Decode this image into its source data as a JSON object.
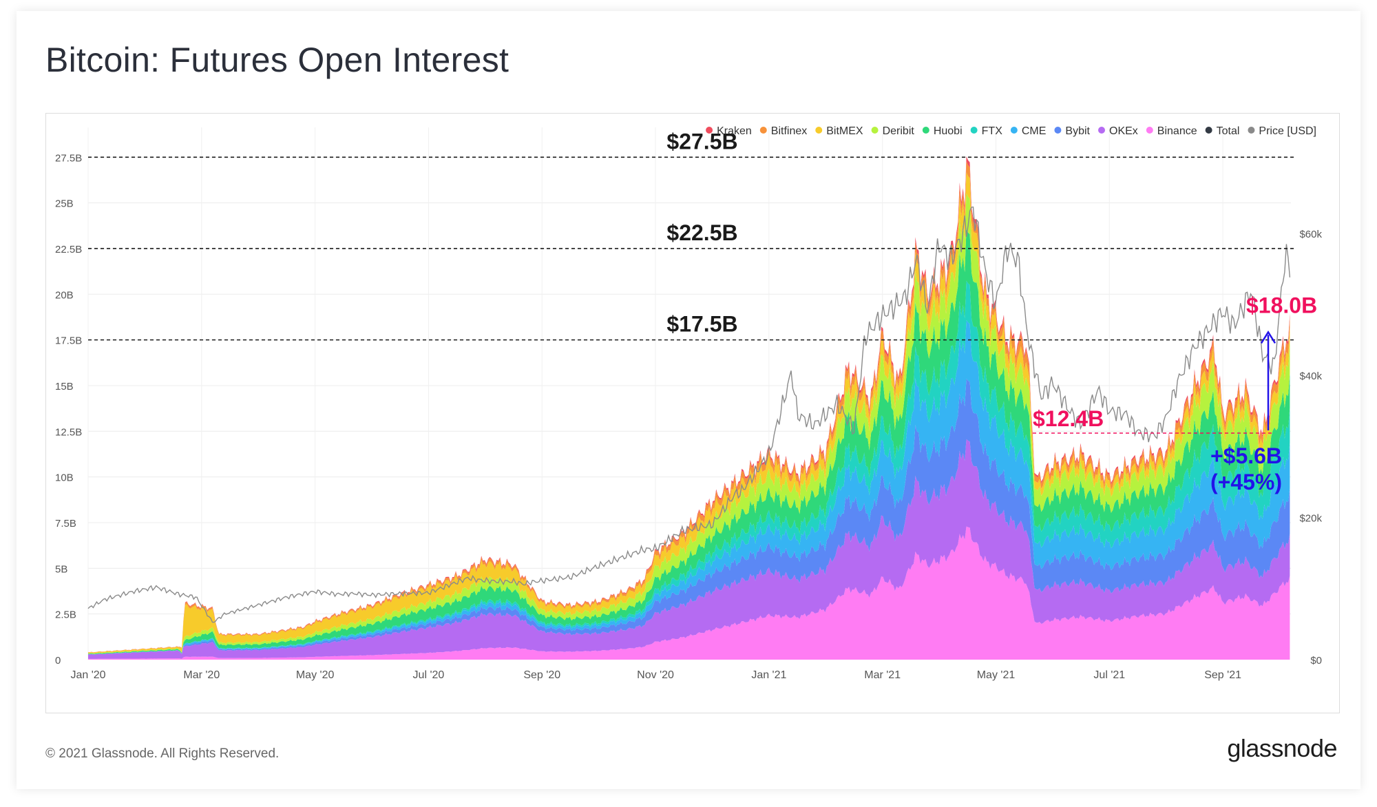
{
  "title": "Bitcoin: Futures Open Interest",
  "footer": {
    "copyright": "© 2021 Glassnode. All Rights Reserved.",
    "brand": "glassnode"
  },
  "colors": {
    "Kraken": "#f04d5e",
    "Bitfinex": "#f7923a",
    "BitMEX": "#f7cb2b",
    "Deribit": "#b6f23e",
    "Huobi": "#2fd87a",
    "FTX": "#22d3c2",
    "CME": "#36b4f3",
    "Bybit": "#5b88f5",
    "OKEx": "#b56bf2",
    "Binance": "#ff7cf3",
    "Total": "#333a44",
    "Price [USD]": "#8a8a8a",
    "guide": "#1a1a1a",
    "highlight": "#f0105e",
    "change": "#2212e8"
  },
  "chart_data": {
    "type": "area",
    "title": "Bitcoin: Futures Open Interest",
    "legend": [
      "Kraken",
      "Bitfinex",
      "BitMEX",
      "Deribit",
      "Huobi",
      "FTX",
      "CME",
      "Bybit",
      "OKEx",
      "Binance",
      "Total",
      "Price [USD]"
    ],
    "legend_position": "top-right",
    "x_ticks": [
      "Jan '20",
      "Mar '20",
      "May '20",
      "Jul '20",
      "Sep '20",
      "Nov '20",
      "Jan '21",
      "Mar '21",
      "May '21",
      "Jul '21",
      "Sep '21"
    ],
    "y_left": {
      "ticks": [
        "0",
        "2.5B",
        "5B",
        "7.5B",
        "10B",
        "12.5B",
        "15B",
        "17.5B",
        "20B",
        "22.5B",
        "25B",
        "27.5B"
      ],
      "range": [
        0,
        28000000000
      ]
    },
    "y_right": {
      "ticks": [
        "$0",
        "$20k",
        "$40k",
        "$60k"
      ],
      "range": [
        0,
        72000
      ]
    },
    "x_range": [
      0,
      21.2
    ],
    "series_order_bottom_to_top": [
      "Binance",
      "OKEx",
      "Bybit",
      "CME",
      "FTX",
      "Huobi",
      "Deribit",
      "BitMEX",
      "Bitfinex",
      "Kraken"
    ],
    "total_oi_billions": {
      "x": [
        0,
        0.5,
        1,
        1.5,
        1.65,
        1.7,
        2.2,
        2.3,
        3,
        3.8,
        4,
        4.5,
        5,
        5.5,
        6,
        6.5,
        7,
        7.5,
        8,
        8.5,
        9,
        9.5,
        9.8,
        10,
        10.5,
        11,
        11.5,
        12,
        12.5,
        13,
        13.4,
        13.8,
        14,
        14.3,
        14.6,
        14.8,
        15.2,
        15.5,
        15.8,
        16.2,
        16.55,
        16.7,
        17,
        17.5,
        18,
        18.5,
        19,
        19.5,
        19.85,
        20,
        20.4,
        20.7,
        21.1,
        21.2
      ],
      "y": [
        0.4,
        0.5,
        0.6,
        0.7,
        0.7,
        3.1,
        2.8,
        1.4,
        1.4,
        1.8,
        2.1,
        2.6,
        3.0,
        3.6,
        4.1,
        4.6,
        5.5,
        5.2,
        3.2,
        3.0,
        3.2,
        3.8,
        4.4,
        5.9,
        7.0,
        8.7,
        10.0,
        11.3,
        10.2,
        11.5,
        16.0,
        14.3,
        17.9,
        15.1,
        22.5,
        20.0,
        21.9,
        27.2,
        20.2,
        17.6,
        17.3,
        9.8,
        10.7,
        11.3,
        10.0,
        11.0,
        11.4,
        15.0,
        17.2,
        13.5,
        14.8,
        12.4,
        17.6,
        18.0
      ]
    },
    "share_by_exchange": {
      "x": [
        0,
        1.6,
        1.7,
        2.3,
        6,
        8,
        9.7,
        10.3,
        13,
        16,
        16.5,
        16.7,
        21.2
      ],
      "Binance": [
        0.1,
        0.1,
        0.05,
        0.06,
        0.09,
        0.14,
        0.16,
        0.17,
        0.24,
        0.27,
        0.25,
        0.2,
        0.24
      ],
      "OKEx": [
        0.6,
        0.6,
        0.18,
        0.3,
        0.34,
        0.34,
        0.27,
        0.26,
        0.19,
        0.17,
        0.17,
        0.18,
        0.12
      ],
      "Bybit": [
        0.0,
        0.0,
        0.02,
        0.04,
        0.05,
        0.07,
        0.1,
        0.11,
        0.12,
        0.12,
        0.11,
        0.13,
        0.13
      ],
      "CME": [
        0.02,
        0.02,
        0.03,
        0.03,
        0.04,
        0.05,
        0.06,
        0.07,
        0.1,
        0.12,
        0.11,
        0.12,
        0.13
      ],
      "FTX": [
        0.0,
        0.0,
        0.0,
        0.01,
        0.02,
        0.03,
        0.04,
        0.05,
        0.07,
        0.08,
        0.08,
        0.09,
        0.1
      ],
      "Huobi": [
        0.08,
        0.08,
        0.06,
        0.14,
        0.14,
        0.12,
        0.11,
        0.1,
        0.11,
        0.1,
        0.1,
        0.11,
        0.1
      ],
      "Deribit": [
        0.05,
        0.05,
        0.06,
        0.08,
        0.09,
        0.09,
        0.11,
        0.1,
        0.08,
        0.07,
        0.08,
        0.09,
        0.09
      ],
      "BitMEX": [
        0.12,
        0.12,
        0.55,
        0.3,
        0.19,
        0.12,
        0.1,
        0.09,
        0.05,
        0.04,
        0.05,
        0.04,
        0.04
      ],
      "Bitfinex": [
        0.02,
        0.02,
        0.04,
        0.03,
        0.03,
        0.03,
        0.04,
        0.04,
        0.03,
        0.02,
        0.04,
        0.03,
        0.03
      ],
      "Kraken": [
        0.01,
        0.01,
        0.01,
        0.01,
        0.01,
        0.01,
        0.01,
        0.01,
        0.01,
        0.01,
        0.01,
        0.01,
        0.01
      ]
    },
    "price_usd": {
      "x": [
        0,
        0.3,
        0.8,
        1.2,
        1.6,
        1.9,
        2.2,
        2.4,
        3,
        3.5,
        4,
        4.4,
        4.7,
        5,
        5.5,
        6,
        6.7,
        6.9,
        7.2,
        7.5,
        7.7,
        7.8,
        8.5,
        9,
        9.8,
        10,
        10.5,
        11,
        11.4,
        11.5,
        12,
        12.4,
        12.5,
        12.8,
        13.2,
        13.5,
        13.7,
        14,
        14.4,
        14.6,
        14.8,
        14.9,
        15,
        15.2,
        15.4,
        15.6,
        15.8,
        16,
        16.2,
        16.4,
        16.5,
        16.6,
        16.8,
        17,
        17.3,
        17.5,
        17.8,
        18,
        18.3,
        18.5,
        18.8,
        19,
        19.2,
        19.5,
        19.8,
        20,
        20.2,
        20.5,
        20.7,
        20.9,
        21.1,
        21.2
      ],
      "y": [
        7200,
        8500,
        9600,
        10200,
        9200,
        8800,
        5200,
        6400,
        7700,
        8800,
        9600,
        9200,
        9300,
        9100,
        9300,
        9400,
        11500,
        11200,
        11000,
        11000,
        10600,
        10900,
        11600,
        13200,
        15500,
        15600,
        18200,
        19000,
        23300,
        23500,
        28900,
        40500,
        34500,
        33000,
        36000,
        32400,
        45600,
        48400,
        51000,
        56500,
        49000,
        54500,
        58500,
        56300,
        59500,
        63600,
        55000,
        50000,
        58000,
        56000,
        49000,
        44000,
        37000,
        39000,
        35000,
        33000,
        38000,
        35000,
        34500,
        32000,
        31500,
        34000,
        39000,
        44000,
        47000,
        49000,
        47000,
        52000,
        43000,
        41000,
        57000,
        55000
      ]
    },
    "annotations": {
      "guide_labels": [
        "$27.5B",
        "$22.5B",
        "$17.5B"
      ],
      "guide_levels_billions": [
        27.5,
        22.5,
        17.5
      ],
      "low_label": "$12.4B",
      "low_value_billions": 12.4,
      "high_label": "$18.0B",
      "high_value_billions": 18.0,
      "change_label": "+$5.6B",
      "change_pct_label": "(+45%)"
    }
  }
}
